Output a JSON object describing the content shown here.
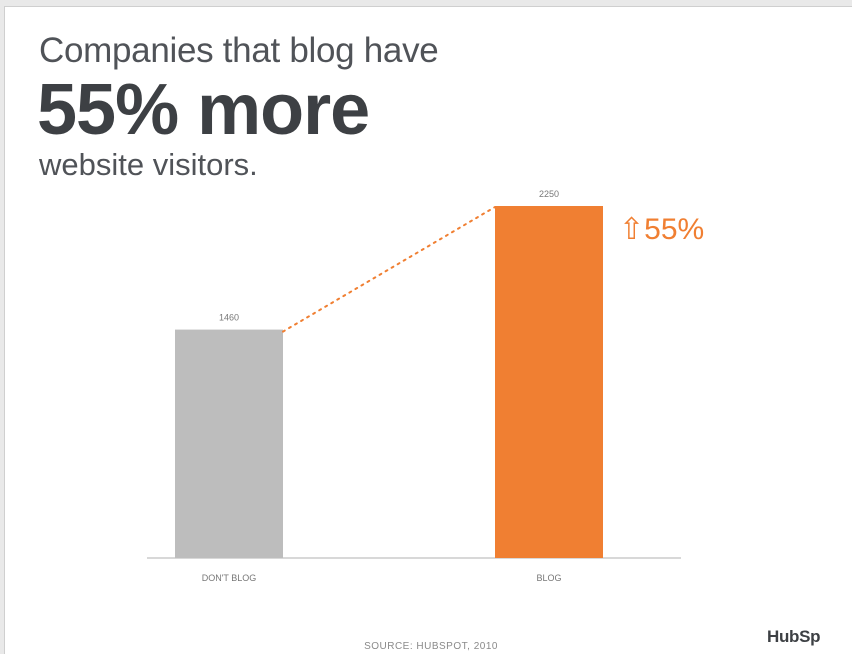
{
  "headline": {
    "line1": "Companies that blog have",
    "line2": "55% more",
    "line3": "website visitors."
  },
  "source": "SOURCE: HUBSPOT, 2010",
  "logo": "HubSp",
  "colors": {
    "dont_blog_bar": "#bdbdbd",
    "blog_bar": "#f07f32",
    "accent": "#f07f32",
    "axis": "#b0b0b0",
    "label": "#777777"
  },
  "chart_data": {
    "type": "bar",
    "categories": [
      "DON'T BLOG",
      "BLOG"
    ],
    "values": [
      1460,
      2250
    ],
    "data_labels": [
      "1460",
      "2250"
    ],
    "ylim": [
      0,
      2250
    ],
    "grid": false,
    "legend": "none",
    "annotation": "⇧55%",
    "annotation_icon": "up-arrow-icon"
  }
}
